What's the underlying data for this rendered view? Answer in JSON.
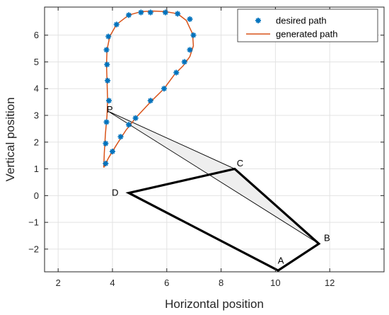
{
  "chart_data": {
    "type": "scatter",
    "xlabel": "Horizontal position",
    "ylabel": "Vertical position",
    "xlim": [
      1.5,
      14
    ],
    "ylim": [
      -2.85,
      7.05
    ],
    "xticks": [
      2,
      4,
      6,
      8,
      10,
      12
    ],
    "yticks": [
      -2,
      -1,
      0,
      1,
      2,
      3,
      4,
      5,
      6
    ],
    "xtick_labels": [
      "2",
      "4",
      "6",
      "8",
      "10",
      "12"
    ],
    "ytick_labels": [
      "−2",
      "−1",
      "0",
      "1",
      "2",
      "3",
      "4",
      "5",
      "6"
    ],
    "grid": true,
    "legend": {
      "placement": "top-right",
      "entries": [
        {
          "label": "desired path",
          "marker": "asterisk",
          "color": "#0072BD"
        },
        {
          "label": "generated path",
          "marker": "line",
          "color": "#D95319"
        }
      ]
    },
    "series": [
      {
        "name": "desired path",
        "style": "asterisk",
        "color": "#0072BD",
        "points": [
          [
            3.75,
            1.2
          ],
          [
            3.75,
            1.95
          ],
          [
            3.78,
            2.75
          ],
          [
            3.87,
            3.55
          ],
          [
            3.82,
            4.3
          ],
          [
            3.8,
            4.9
          ],
          [
            3.78,
            5.45
          ],
          [
            3.85,
            5.95
          ],
          [
            4.15,
            6.4
          ],
          [
            4.6,
            6.75
          ],
          [
            5.05,
            6.85
          ],
          [
            5.4,
            6.85
          ],
          [
            5.95,
            6.85
          ],
          [
            6.4,
            6.8
          ],
          [
            6.85,
            6.6
          ],
          [
            6.98,
            6.0
          ],
          [
            6.85,
            5.45
          ],
          [
            6.65,
            5.0
          ],
          [
            6.35,
            4.6
          ],
          [
            5.9,
            4.0
          ],
          [
            5.4,
            3.55
          ],
          [
            4.85,
            2.9
          ],
          [
            4.6,
            2.65
          ],
          [
            4.3,
            2.2
          ],
          [
            4.0,
            1.65
          ]
        ]
      },
      {
        "name": "generated path",
        "style": "line",
        "color": "#D95319",
        "points": [
          [
            3.68,
            1.05
          ],
          [
            3.7,
            1.6
          ],
          [
            3.74,
            2.3
          ],
          [
            3.8,
            3.0
          ],
          [
            3.82,
            3.6
          ],
          [
            3.8,
            4.3
          ],
          [
            3.78,
            4.9
          ],
          [
            3.8,
            5.45
          ],
          [
            3.9,
            5.95
          ],
          [
            4.15,
            6.4
          ],
          [
            4.6,
            6.75
          ],
          [
            5.05,
            6.88
          ],
          [
            5.5,
            6.9
          ],
          [
            5.95,
            6.88
          ],
          [
            6.4,
            6.8
          ],
          [
            6.72,
            6.55
          ],
          [
            6.95,
            6.05
          ],
          [
            6.98,
            5.6
          ],
          [
            6.85,
            5.2
          ],
          [
            6.6,
            4.85
          ],
          [
            6.3,
            4.55
          ],
          [
            5.9,
            4.0
          ],
          [
            5.4,
            3.5
          ],
          [
            4.85,
            2.9
          ],
          [
            4.5,
            2.45
          ],
          [
            4.15,
            1.9
          ],
          [
            3.85,
            1.4
          ],
          [
            3.68,
            1.05
          ]
        ]
      }
    ],
    "linkage": {
      "labels": [
        {
          "text": "A",
          "x": 10.2,
          "y": -2.55
        },
        {
          "text": "B",
          "x": 11.9,
          "y": -1.7
        },
        {
          "text": "C",
          "x": 8.7,
          "y": 1.1
        },
        {
          "text": "D",
          "x": 4.1,
          "y": 0.0
        },
        {
          "text": "P",
          "x": 3.9,
          "y": 3.1
        }
      ],
      "frame": [
        [
          10.1,
          -2.8
        ],
        [
          11.6,
          -1.8
        ],
        [
          8.5,
          1.0
        ],
        [
          4.6,
          0.1
        ]
      ],
      "coupler": [
        [
          3.85,
          3.15
        ],
        [
          8.5,
          1.0
        ],
        [
          11.6,
          -1.8
        ]
      ],
      "coupler_fill": "#eeeeee"
    }
  }
}
